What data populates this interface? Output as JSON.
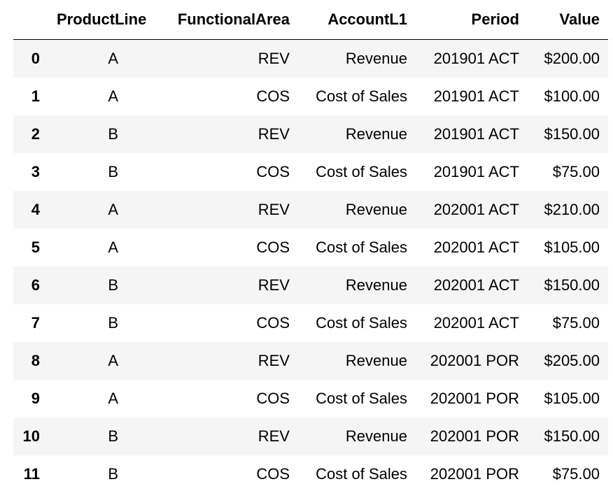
{
  "table": {
    "columns": [
      "ProductLine",
      "FunctionalArea",
      "AccountL1",
      "Period",
      "Value"
    ],
    "rows": [
      {
        "index": "0",
        "ProductLine": "A",
        "FunctionalArea": "REV",
        "AccountL1": "Revenue",
        "Period": "201901 ACT",
        "Value": "$200.00"
      },
      {
        "index": "1",
        "ProductLine": "A",
        "FunctionalArea": "COS",
        "AccountL1": "Cost of Sales",
        "Period": "201901 ACT",
        "Value": "$100.00"
      },
      {
        "index": "2",
        "ProductLine": "B",
        "FunctionalArea": "REV",
        "AccountL1": "Revenue",
        "Period": "201901 ACT",
        "Value": "$150.00"
      },
      {
        "index": "3",
        "ProductLine": "B",
        "FunctionalArea": "COS",
        "AccountL1": "Cost of Sales",
        "Period": "201901 ACT",
        "Value": "$75.00"
      },
      {
        "index": "4",
        "ProductLine": "A",
        "FunctionalArea": "REV",
        "AccountL1": "Revenue",
        "Period": "202001 ACT",
        "Value": "$210.00"
      },
      {
        "index": "5",
        "ProductLine": "A",
        "FunctionalArea": "COS",
        "AccountL1": "Cost of Sales",
        "Period": "202001 ACT",
        "Value": "$105.00"
      },
      {
        "index": "6",
        "ProductLine": "B",
        "FunctionalArea": "REV",
        "AccountL1": "Revenue",
        "Period": "202001 ACT",
        "Value": "$150.00"
      },
      {
        "index": "7",
        "ProductLine": "B",
        "FunctionalArea": "COS",
        "AccountL1": "Cost of Sales",
        "Period": "202001 ACT",
        "Value": "$75.00"
      },
      {
        "index": "8",
        "ProductLine": "A",
        "FunctionalArea": "REV",
        "AccountL1": "Revenue",
        "Period": "202001 POR",
        "Value": "$205.00"
      },
      {
        "index": "9",
        "ProductLine": "A",
        "FunctionalArea": "COS",
        "AccountL1": "Cost of Sales",
        "Period": "202001 POR",
        "Value": "$105.00"
      },
      {
        "index": "10",
        "ProductLine": "B",
        "FunctionalArea": "REV",
        "AccountL1": "Revenue",
        "Period": "202001 POR",
        "Value": "$150.00"
      },
      {
        "index": "11",
        "ProductLine": "B",
        "FunctionalArea": "COS",
        "AccountL1": "Cost of Sales",
        "Period": "202001 POR",
        "Value": "$75.00"
      }
    ]
  },
  "colors": {
    "striped_row_background": "#f5f5f5",
    "text": "#000000",
    "header_rule": "#000000"
  }
}
